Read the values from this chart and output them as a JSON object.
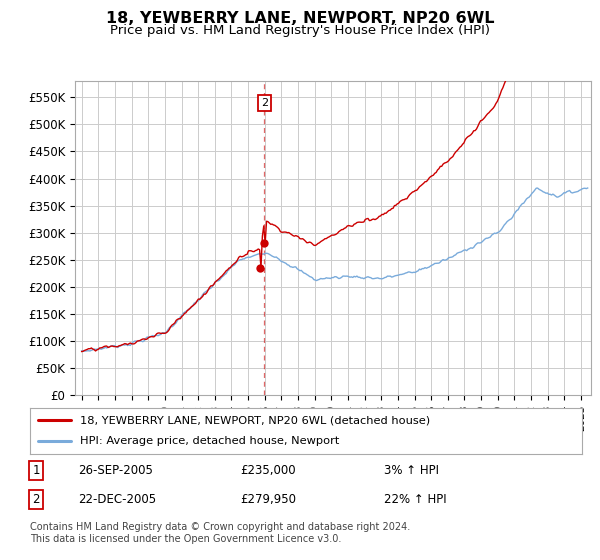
{
  "title": "18, YEWBERRY LANE, NEWPORT, NP20 6WL",
  "subtitle": "Price paid vs. HM Land Registry's House Price Index (HPI)",
  "title_fontsize": 11.5,
  "subtitle_fontsize": 9.5,
  "ylim": [
    0,
    580000
  ],
  "yticks": [
    0,
    50000,
    100000,
    150000,
    200000,
    250000,
    300000,
    350000,
    400000,
    450000,
    500000,
    550000
  ],
  "ytick_labels": [
    "£0",
    "£50K",
    "£100K",
    "£150K",
    "£200K",
    "£250K",
    "£300K",
    "£350K",
    "£400K",
    "£450K",
    "£500K",
    "£550K"
  ],
  "xlim_start": 1994.6,
  "xlim_end": 2025.6,
  "background_color": "#ffffff",
  "grid_color": "#cccccc",
  "line1_color": "#cc0000",
  "line2_color": "#7aabdb",
  "marker_color": "#cc0000",
  "sale1_x": 2005.73,
  "sale1_y": 235000,
  "sale2_x": 2005.97,
  "sale2_y": 279950,
  "legend_label1": "18, YEWBERRY LANE, NEWPORT, NP20 6WL (detached house)",
  "legend_label2": "HPI: Average price, detached house, Newport",
  "table_row1": [
    "1",
    "26-SEP-2005",
    "£235,000",
    "3% ↑ HPI"
  ],
  "table_row2": [
    "2",
    "22-DEC-2005",
    "£279,950",
    "22% ↑ HPI"
  ],
  "footer": "Contains HM Land Registry data © Crown copyright and database right 2024.\nThis data is licensed under the Open Government Licence v3.0."
}
